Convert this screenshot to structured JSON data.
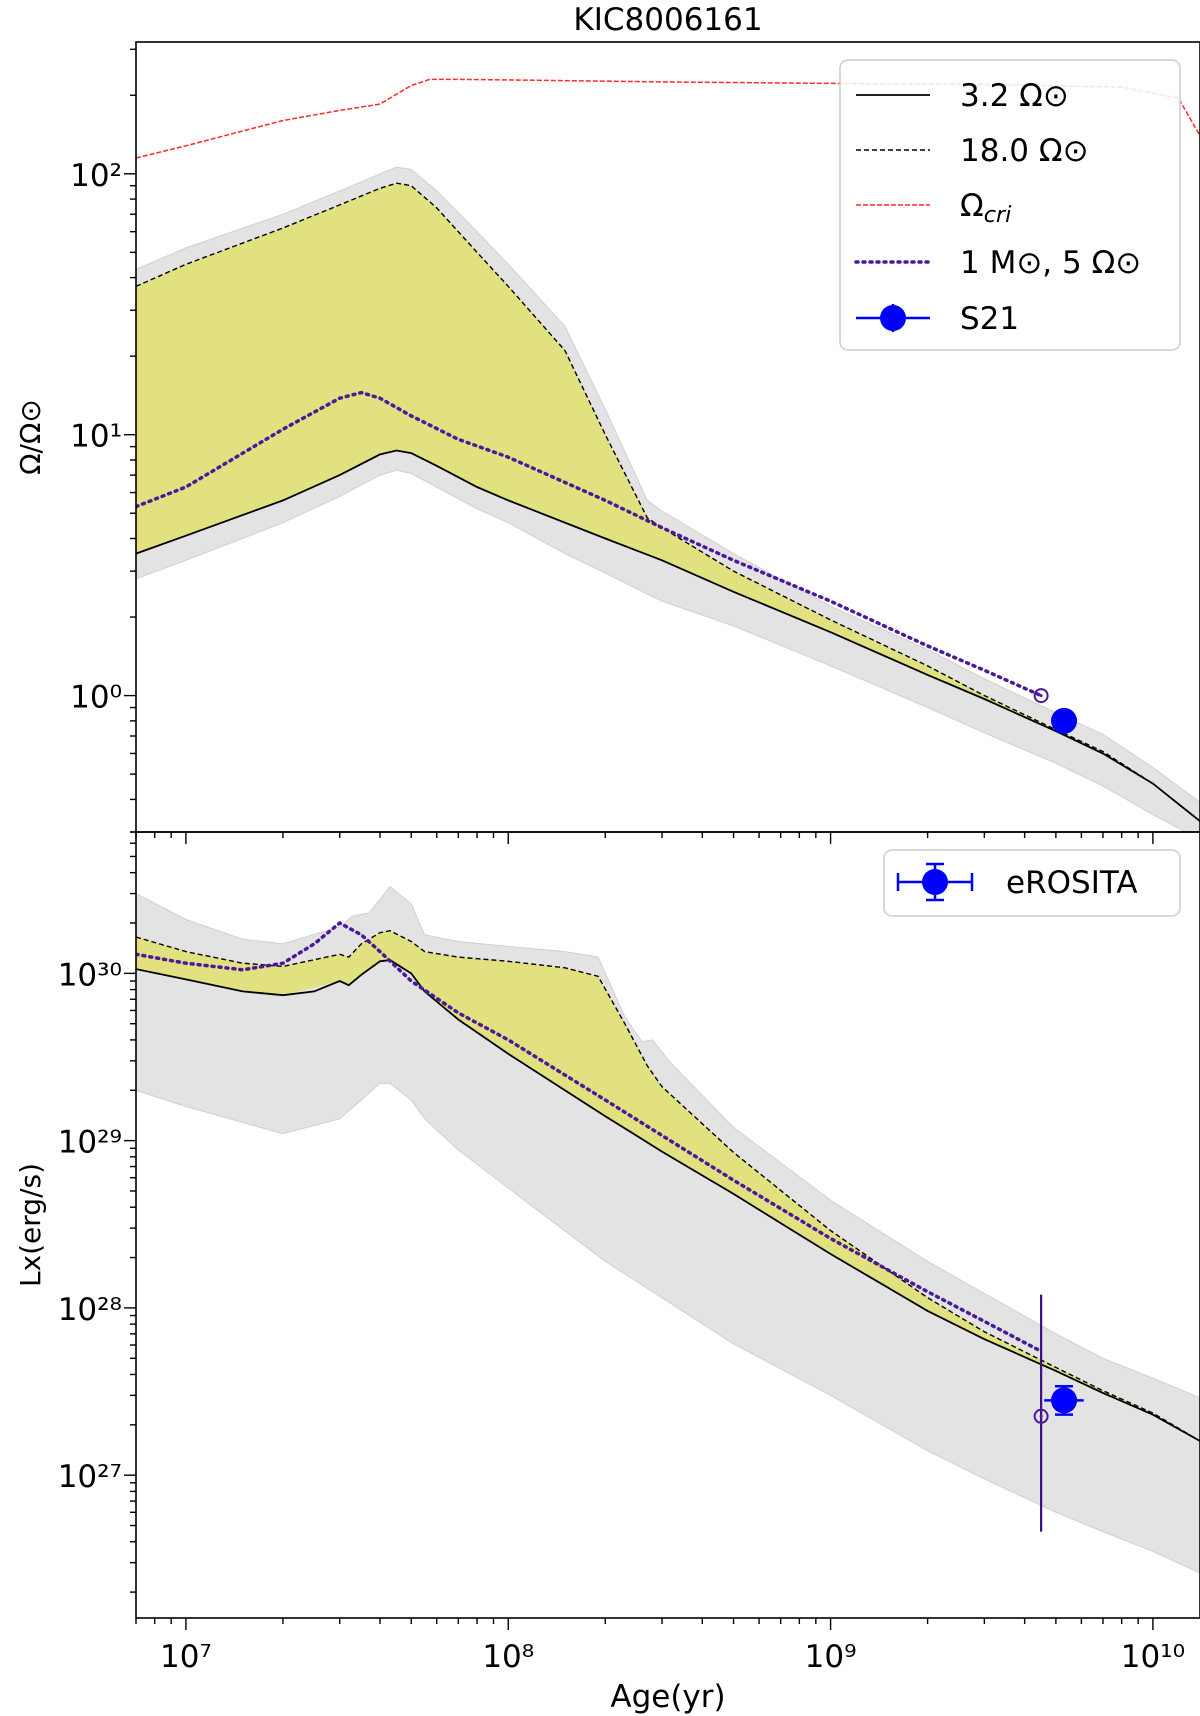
{
  "title": "KIC8006161",
  "colors": {
    "band_grey": "#e3e3e3",
    "band_yellow": "#e2e17f",
    "critical": "#ff2a2a",
    "dotted": "#4b1a9c",
    "observation": "#0000ff",
    "errorbar": "#3b1080"
  },
  "chart_data": [
    {
      "type": "line",
      "panel": "top",
      "ylabel": "Ω/Ω⊙",
      "xscale": "log",
      "yscale": "log",
      "xlim": [
        7000000.0,
        14000000000.0
      ],
      "ylim": [
        0.3,
        320
      ],
      "yticks": [
        {
          "value": 1,
          "label": "10⁰"
        },
        {
          "value": 10,
          "label": "10¹"
        },
        {
          "value": 100,
          "label": "10²"
        }
      ],
      "legend": {
        "position": "top-right",
        "entries": [
          {
            "label": "3.2 Ω⊙",
            "style": "solid"
          },
          {
            "label": "18.0 Ω⊙",
            "style": "dashed"
          },
          {
            "label": "Ωcri",
            "style": "dashed-red"
          },
          {
            "label": "1 M⊙, 5 Ω⊙",
            "style": "dotted"
          },
          {
            "label": "S21",
            "style": "marker"
          }
        ]
      },
      "series": [
        {
          "name": "3.2 Ω⊙",
          "style": "solid",
          "x": [
            7000000.0,
            10000000.0,
            20000000.0,
            30000000.0,
            40000000.0,
            45000000.0,
            50000000.0,
            60000000.0,
            80000000.0,
            100000000.0,
            200000000.0,
            300000000.0,
            500000000.0,
            1000000000.0,
            2000000000.0,
            3000000000.0,
            5000000000.0,
            7000000000.0,
            10000000000.0,
            14000000000.0
          ],
          "y": [
            3.5,
            4.1,
            5.6,
            7.0,
            8.4,
            8.7,
            8.5,
            7.6,
            6.3,
            5.6,
            4.0,
            3.3,
            2.5,
            1.75,
            1.2,
            0.97,
            0.73,
            0.6,
            0.46,
            0.33
          ]
        },
        {
          "name": "18.0 Ω⊙",
          "style": "dashed",
          "x": [
            7000000.0,
            10000000.0,
            20000000.0,
            30000000.0,
            40000000.0,
            45000000.0,
            50000000.0,
            60000000.0,
            80000000.0,
            100000000.0,
            150000000.0,
            200000000.0,
            270000000.0,
            300000000.0,
            500000000.0,
            1000000000.0,
            2000000000.0,
            3000000000.0,
            5000000000.0,
            7000000000.0,
            10000000000.0,
            14000000000.0
          ],
          "y": [
            37,
            45,
            62,
            76,
            88,
            92,
            90,
            74,
            50,
            37,
            21,
            10,
            4.8,
            4.4,
            3.0,
            1.95,
            1.3,
            1.0,
            0.74,
            0.61,
            0.46,
            0.33
          ]
        },
        {
          "name": "Ωcri",
          "style": "dashed-red",
          "x": [
            7000000.0,
            10000000.0,
            20000000.0,
            30000000.0,
            40000000.0,
            50000000.0,
            57000000.0,
            70000000.0,
            100000000.0,
            300000000.0,
            1000000000.0,
            3000000000.0,
            8000000000.0,
            12000000000.0,
            14000000000.0
          ],
          "y": [
            115,
            128,
            160,
            175,
            185,
            218,
            230,
            230,
            229,
            225,
            222,
            220,
            215,
            195,
            140
          ]
        },
        {
          "name": "1 M⊙, 5 Ω⊙",
          "style": "dotted",
          "x": [
            7000000.0,
            10000000.0,
            20000000.0,
            30000000.0,
            35000000.0,
            40000000.0,
            50000000.0,
            70000000.0,
            100000000.0,
            200000000.0,
            300000000.0,
            500000000.0,
            1000000000.0,
            2000000000.0,
            3000000000.0,
            4500000000.0
          ],
          "y": [
            5.3,
            6.3,
            10.5,
            13.8,
            14.5,
            13.8,
            11.8,
            9.6,
            8.2,
            5.6,
            4.4,
            3.3,
            2.3,
            1.55,
            1.25,
            1.0
          ]
        }
      ],
      "band_outer": {
        "x": [
          7000000.0,
          10000000.0,
          20000000.0,
          30000000.0,
          40000000.0,
          45000000.0,
          50000000.0,
          60000000.0,
          80000000.0,
          100000000.0,
          150000000.0,
          200000000.0,
          270000000.0,
          300000000.0,
          500000000.0,
          1000000000.0,
          2000000000.0,
          3000000000.0,
          5000000000.0,
          7000000000.0,
          10000000000.0,
          14000000000.0
        ],
        "upper": [
          43,
          52,
          70,
          86,
          100,
          106,
          104,
          86,
          60,
          45,
          26,
          12.5,
          5.6,
          5.1,
          3.5,
          2.2,
          1.5,
          1.16,
          0.86,
          0.71,
          0.53,
          0.39
        ],
        "lower": [
          2.8,
          3.3,
          4.6,
          5.8,
          7.0,
          7.3,
          7.1,
          6.3,
          5.2,
          4.6,
          3.5,
          2.95,
          2.45,
          2.3,
          1.85,
          1.3,
          0.9,
          0.72,
          0.55,
          0.45,
          0.35,
          0.28
        ]
      },
      "points": [
        {
          "name": "S21",
          "x": 5300000000.0,
          "y": 0.8,
          "marker": "filled-circle"
        },
        {
          "name": "model-end",
          "x": 4500000000.0,
          "y": 1.0,
          "marker": "open-circle"
        }
      ]
    },
    {
      "type": "line",
      "panel": "bottom",
      "ylabel": "Lx(erg/s)",
      "xlabel": "Age(yr)",
      "xscale": "log",
      "yscale": "log",
      "xlim": [
        7000000.0,
        14000000000.0
      ],
      "ylim": [
        1.4e+26,
        7e+30
      ],
      "xticks": [
        {
          "value": 10000000.0,
          "label": "10⁷"
        },
        {
          "value": 100000000.0,
          "label": "10⁸"
        },
        {
          "value": 1000000000.0,
          "label": "10⁹"
        },
        {
          "value": 10000000000.0,
          "label": "10¹⁰"
        }
      ],
      "yticks": [
        {
          "value": 1e+27,
          "label": "10²⁷"
        },
        {
          "value": 1e+28,
          "label": "10²⁸"
        },
        {
          "value": 1e+29,
          "label": "10²⁹"
        },
        {
          "value": 1e+30,
          "label": "10³⁰"
        }
      ],
      "legend": {
        "position": "top-right",
        "entries": [
          {
            "label": "eROSITA",
            "style": "marker-errorbar"
          }
        ]
      },
      "series": [
        {
          "name": "3.2 Ω⊙",
          "style": "solid",
          "x": [
            7000000.0,
            10000000.0,
            15000000.0,
            20000000.0,
            25000000.0,
            30000000.0,
            32000000.0,
            35000000.0,
            40000000.0,
            43000000.0,
            50000000.0,
            55000000.0,
            70000000.0,
            100000000.0,
            200000000.0,
            300000000.0,
            500000000.0,
            1000000000.0,
            2000000000.0,
            3000000000.0,
            5000000000.0,
            7000000000.0,
            10000000000.0,
            14000000000.0
          ],
          "y": [
            1.06e+30,
            9.2e+29,
            7.8e+29,
            7.4e+29,
            7.8e+29,
            9e+29,
            8.5e+29,
            9.8e+29,
            1.18e+30,
            1.2e+30,
            1e+30,
            7.8e+29,
            5.3e+29,
            3.3e+29,
            1.4e+29,
            8.6e+28,
            4.8e+28,
            2.1e+28,
            9.6e+27,
            6.5e+27,
            4.2e+27,
            3.1e+27,
            2.3e+27,
            1.6e+27
          ]
        },
        {
          "name": "18.0 Ω⊙",
          "style": "dashed",
          "x": [
            7000000.0,
            10000000.0,
            15000000.0,
            20000000.0,
            30000000.0,
            32000000.0,
            35000000.0,
            40000000.0,
            43000000.0,
            50000000.0,
            55000000.0,
            70000000.0,
            100000000.0,
            150000000.0,
            190000000.0,
            230000000.0,
            270000000.0,
            300000000.0,
            500000000.0,
            1000000000.0,
            2000000000.0,
            3000000000.0,
            5000000000.0,
            7000000000.0,
            10000000000.0,
            14000000000.0
          ],
          "y": [
            1.65e+30,
            1.35e+30,
            1.15e+30,
            1.1e+30,
            1.3e+30,
            1.25e+30,
            1.5e+30,
            1.75e+30,
            1.8e+30,
            1.55e+30,
            1.35e+30,
            1.25e+30,
            1.18e+30,
            1.08e+30,
            9.6e+29,
            5e+29,
            2.8e+29,
            2.1e+29,
            8.5e+28,
            2.9e+28,
            1.15e+28,
            7.2e+27,
            4.4e+27,
            3.2e+27,
            2.35e+27,
            1.6e+27
          ]
        },
        {
          "name": "1 M⊙, 5 Ω⊙",
          "style": "dotted",
          "x": [
            7000000.0,
            10000000.0,
            15000000.0,
            20000000.0,
            25000000.0,
            30000000.0,
            35000000.0,
            40000000.0,
            50000000.0,
            70000000.0,
            100000000.0,
            200000000.0,
            500000000.0,
            1000000000.0,
            2000000000.0,
            3000000000.0,
            4500000000.0
          ],
          "y": [
            1.3e+30,
            1.15e+30,
            1.05e+30,
            1.15e+30,
            1.5e+30,
            2e+30,
            1.7e+30,
            1.35e+30,
            9e+29,
            5.8e+29,
            4e+29,
            1.75e+29,
            5.8e+28,
            2.6e+28,
            1.25e+28,
            8.3e+27,
            5.5e+27
          ]
        }
      ],
      "band_outer": {
        "x": [
          7000000.0,
          10000000.0,
          15000000.0,
          20000000.0,
          30000000.0,
          33000000.0,
          37000000.0,
          43000000.0,
          50000000.0,
          55000000.0,
          70000000.0,
          100000000.0,
          150000000.0,
          190000000.0,
          230000000.0,
          260000000.0,
          280000000.0,
          320000000.0,
          500000000.0,
          1000000000.0,
          2000000000.0,
          3000000000.0,
          5000000000.0,
          7000000000.0,
          10000000000.0,
          14000000000.0
        ],
        "upper": [
          3e+30,
          2.1e+30,
          1.6e+30,
          1.5e+30,
          1.9e+30,
          2.2e+30,
          2.3e+30,
          3.3e+30,
          2.6e+30,
          1.7e+30,
          1.55e+30,
          1.45e+30,
          1.35e+30,
          1.25e+30,
          5.5e+29,
          3.9e+29,
          4e+29,
          2.9e+29,
          1.2e+29,
          4.4e+28,
          1.9e+28,
          1.22e+28,
          7e+27,
          5e+27,
          3.8e+27,
          2.9e+27
        ]
      },
      "band_lower": {
        "x": [
          7000000.0,
          10000000.0,
          20000000.0,
          30000000.0,
          35000000.0,
          40000000.0,
          43000000.0,
          50000000.0,
          55000000.0,
          70000000.0,
          100000000.0,
          200000000.0,
          500000000.0,
          1000000000.0,
          2000000000.0,
          3000000000.0,
          5000000000.0,
          7000000000.0,
          10000000000.0,
          14000000000.0
        ],
        "y": [
          2e+29,
          1.6e+29,
          1.1e+29,
          1.35e+29,
          1.75e+29,
          2.2e+29,
          2.2e+29,
          1.75e+29,
          1.35e+29,
          8.8e+28,
          5.2e+28,
          1.9e+28,
          6.1e+27,
          3e+27,
          1.4e+27,
          9.5e+26,
          6e+26,
          4.6e+26,
          3.5e+26,
          2.6e+26
        ]
      },
      "points": [
        {
          "name": "eROSITA",
          "x": 5300000000.0,
          "y": 2.8e+27,
          "yerr_low": 2.3e+27,
          "yerr_high": 3.4e+27,
          "xerr_low": 4600000000.0,
          "xerr_high": 6100000000.0,
          "marker": "filled-circle"
        },
        {
          "name": "model-end",
          "x": 4500000000.0,
          "y": 2.25e+27,
          "yerr_low": 4.6e+26,
          "yerr_high": 1.2e+28,
          "marker": "open-circle"
        }
      ]
    }
  ]
}
